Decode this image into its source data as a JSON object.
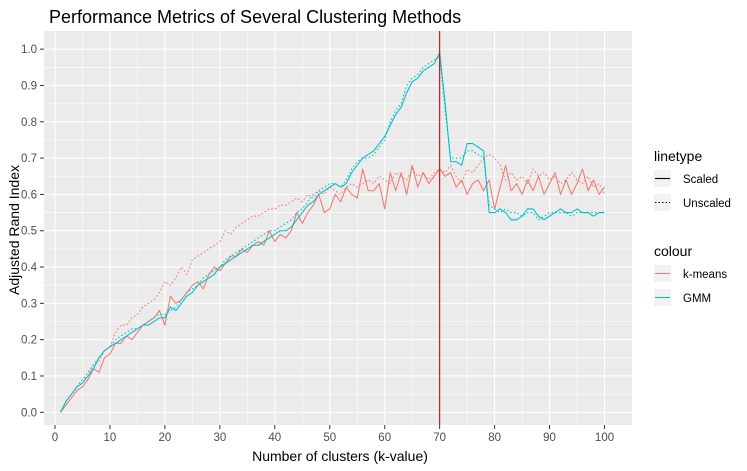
{
  "chart_data": {
    "type": "line",
    "title": "Performance Metrics of Several Clustering Methods",
    "xlabel": "Number of clusters (k-value)",
    "ylabel": "Adjusted Rand Index",
    "xlim": [
      -2,
      105
    ],
    "ylim": [
      -0.035,
      1.05
    ],
    "xticks": [
      0,
      10,
      20,
      30,
      40,
      50,
      60,
      70,
      80,
      90,
      100
    ],
    "yticks": [
      0.0,
      0.1,
      0.2,
      0.3,
      0.4,
      0.5,
      0.6,
      0.7,
      0.8,
      0.9,
      1.0
    ],
    "vline": {
      "x": 70,
      "color": "#cc0000"
    },
    "grid": true,
    "legend_position": "right",
    "legend_linetype": {
      "title": "linetype",
      "items": [
        {
          "label": "Scaled",
          "dash": "solid"
        },
        {
          "label": "Unscaled",
          "dash": "dotted"
        }
      ]
    },
    "legend_colour": {
      "title": "colour",
      "items": [
        {
          "label": "k-means",
          "color": "#F8766D"
        },
        {
          "label": "GMM",
          "color": "#00BFC4"
        }
      ]
    },
    "series": [
      {
        "method": "k-means",
        "linetype": "Scaled",
        "color": "#F8766D",
        "x": [
          1,
          2,
          3,
          4,
          5,
          6,
          7,
          8,
          9,
          10,
          11,
          12,
          13,
          14,
          15,
          16,
          17,
          18,
          19,
          20,
          21,
          22,
          23,
          24,
          25,
          26,
          27,
          28,
          29,
          30,
          31,
          32,
          33,
          34,
          35,
          36,
          37,
          38,
          39,
          40,
          41,
          42,
          43,
          44,
          45,
          46,
          47,
          48,
          49,
          50,
          51,
          52,
          53,
          54,
          55,
          56,
          57,
          58,
          59,
          60,
          61,
          62,
          63,
          64,
          65,
          66,
          67,
          68,
          69,
          70,
          71,
          72,
          73,
          74,
          75,
          76,
          77,
          78,
          79,
          80,
          81,
          82,
          83,
          84,
          85,
          86,
          87,
          88,
          89,
          90,
          91,
          92,
          93,
          94,
          95,
          96,
          97,
          98,
          99,
          100
        ],
        "y": [
          0.0,
          0.02,
          0.04,
          0.06,
          0.07,
          0.09,
          0.12,
          0.11,
          0.15,
          0.16,
          0.19,
          0.19,
          0.21,
          0.2,
          0.22,
          0.24,
          0.25,
          0.26,
          0.28,
          0.24,
          0.32,
          0.3,
          0.31,
          0.33,
          0.35,
          0.36,
          0.34,
          0.38,
          0.4,
          0.39,
          0.41,
          0.43,
          0.43,
          0.45,
          0.44,
          0.46,
          0.47,
          0.46,
          0.5,
          0.47,
          0.49,
          0.48,
          0.5,
          0.55,
          0.52,
          0.55,
          0.57,
          0.6,
          0.55,
          0.56,
          0.6,
          0.58,
          0.62,
          0.6,
          0.59,
          0.67,
          0.61,
          0.61,
          0.63,
          0.56,
          0.66,
          0.61,
          0.66,
          0.6,
          0.68,
          0.62,
          0.66,
          0.63,
          0.65,
          0.67,
          0.65,
          0.66,
          0.62,
          0.64,
          0.6,
          0.63,
          0.64,
          0.61,
          0.64,
          0.56,
          0.62,
          0.68,
          0.61,
          0.63,
          0.6,
          0.64,
          0.61,
          0.65,
          0.6,
          0.63,
          0.66,
          0.6,
          0.64,
          0.6,
          0.63,
          0.67,
          0.61,
          0.64,
          0.6,
          0.62
        ]
      },
      {
        "method": "k-means",
        "linetype": "Unscaled",
        "color": "#F8766D",
        "x": [
          1,
          2,
          3,
          4,
          5,
          6,
          7,
          8,
          9,
          10,
          11,
          12,
          13,
          14,
          15,
          16,
          17,
          18,
          19,
          20,
          21,
          22,
          23,
          24,
          25,
          26,
          27,
          28,
          29,
          30,
          31,
          32,
          33,
          34,
          35,
          36,
          37,
          38,
          39,
          40,
          41,
          42,
          43,
          44,
          45,
          46,
          47,
          48,
          49,
          50,
          51,
          52,
          53,
          54,
          55,
          56,
          57,
          58,
          59,
          60,
          61,
          62,
          63,
          64,
          65,
          66,
          67,
          68,
          69,
          70,
          71,
          72,
          73,
          74,
          75,
          76,
          77,
          78,
          79,
          80,
          81,
          82,
          83,
          84,
          85,
          86,
          87,
          88,
          89,
          90,
          91,
          92,
          93,
          94,
          95,
          96,
          97,
          98,
          99,
          100
        ],
        "y": [
          0.0,
          0.03,
          0.05,
          0.07,
          0.09,
          0.1,
          0.13,
          0.14,
          0.17,
          0.18,
          0.22,
          0.24,
          0.24,
          0.26,
          0.27,
          0.29,
          0.3,
          0.31,
          0.33,
          0.36,
          0.35,
          0.37,
          0.4,
          0.38,
          0.42,
          0.43,
          0.44,
          0.45,
          0.46,
          0.47,
          0.5,
          0.49,
          0.51,
          0.52,
          0.53,
          0.54,
          0.54,
          0.55,
          0.56,
          0.56,
          0.57,
          0.57,
          0.58,
          0.59,
          0.58,
          0.6,
          0.59,
          0.61,
          0.6,
          0.62,
          0.61,
          0.6,
          0.62,
          0.63,
          0.62,
          0.63,
          0.64,
          0.63,
          0.65,
          0.64,
          0.63,
          0.66,
          0.65,
          0.64,
          0.67,
          0.65,
          0.66,
          0.64,
          0.66,
          0.67,
          0.66,
          0.68,
          0.65,
          0.63,
          0.67,
          0.66,
          0.68,
          0.7,
          0.71,
          0.7,
          0.68,
          0.64,
          0.66,
          0.64,
          0.65,
          0.63,
          0.67,
          0.65,
          0.66,
          0.64,
          0.65,
          0.63,
          0.64,
          0.66,
          0.64,
          0.63,
          0.65,
          0.62,
          0.63,
          0.6
        ]
      },
      {
        "method": "GMM",
        "linetype": "Scaled",
        "color": "#00BFC4",
        "x": [
          1,
          2,
          3,
          4,
          5,
          6,
          7,
          8,
          9,
          10,
          11,
          12,
          13,
          14,
          15,
          16,
          17,
          18,
          19,
          20,
          21,
          22,
          23,
          24,
          25,
          26,
          27,
          28,
          29,
          30,
          31,
          32,
          33,
          34,
          35,
          36,
          37,
          38,
          39,
          40,
          41,
          42,
          43,
          44,
          45,
          46,
          47,
          48,
          49,
          50,
          51,
          52,
          53,
          54,
          55,
          56,
          57,
          58,
          59,
          60,
          61,
          62,
          63,
          64,
          65,
          66,
          67,
          68,
          69,
          70,
          71,
          72,
          73,
          74,
          75,
          76,
          77,
          78,
          79,
          80,
          81,
          82,
          83,
          84,
          85,
          86,
          87,
          88,
          89,
          90,
          91,
          92,
          93,
          94,
          95,
          96,
          97,
          98,
          99,
          100
        ],
        "y": [
          0.0,
          0.03,
          0.05,
          0.07,
          0.08,
          0.1,
          0.12,
          0.15,
          0.17,
          0.18,
          0.19,
          0.2,
          0.21,
          0.22,
          0.23,
          0.24,
          0.24,
          0.25,
          0.26,
          0.26,
          0.29,
          0.28,
          0.3,
          0.32,
          0.33,
          0.35,
          0.36,
          0.37,
          0.38,
          0.4,
          0.41,
          0.42,
          0.43,
          0.44,
          0.45,
          0.46,
          0.46,
          0.47,
          0.48,
          0.49,
          0.5,
          0.5,
          0.51,
          0.53,
          0.55,
          0.57,
          0.58,
          0.6,
          0.61,
          0.62,
          0.63,
          0.62,
          0.63,
          0.66,
          0.68,
          0.7,
          0.71,
          0.72,
          0.74,
          0.76,
          0.79,
          0.82,
          0.84,
          0.88,
          0.91,
          0.92,
          0.94,
          0.95,
          0.96,
          0.99,
          0.85,
          0.69,
          0.69,
          0.68,
          0.74,
          0.74,
          0.73,
          0.72,
          0.55,
          0.55,
          0.56,
          0.55,
          0.53,
          0.53,
          0.54,
          0.56,
          0.56,
          0.54,
          0.53,
          0.54,
          0.55,
          0.56,
          0.55,
          0.55,
          0.56,
          0.55,
          0.55,
          0.54,
          0.55,
          0.55
        ]
      },
      {
        "method": "GMM",
        "linetype": "Unscaled",
        "color": "#00BFC4",
        "x": [
          1,
          2,
          3,
          4,
          5,
          6,
          7,
          8,
          9,
          10,
          11,
          12,
          13,
          14,
          15,
          16,
          17,
          18,
          19,
          20,
          21,
          22,
          23,
          24,
          25,
          26,
          27,
          28,
          29,
          30,
          31,
          32,
          33,
          34,
          35,
          36,
          37,
          38,
          39,
          40,
          41,
          42,
          43,
          44,
          45,
          46,
          47,
          48,
          49,
          50,
          51,
          52,
          53,
          54,
          55,
          56,
          57,
          58,
          59,
          60,
          61,
          62,
          63,
          64,
          65,
          66,
          67,
          68,
          69,
          70,
          71,
          72,
          73,
          74,
          75,
          76,
          77,
          78,
          79,
          80,
          81,
          82,
          83,
          84,
          85,
          86,
          87,
          88,
          89,
          90,
          91,
          92,
          93,
          94,
          95,
          96,
          97,
          98,
          99,
          100
        ],
        "y": [
          0.0,
          0.03,
          0.05,
          0.07,
          0.09,
          0.11,
          0.13,
          0.15,
          0.17,
          0.18,
          0.2,
          0.21,
          0.22,
          0.23,
          0.23,
          0.24,
          0.25,
          0.26,
          0.27,
          0.27,
          0.28,
          0.29,
          0.31,
          0.33,
          0.34,
          0.35,
          0.37,
          0.38,
          0.39,
          0.4,
          0.42,
          0.43,
          0.44,
          0.45,
          0.46,
          0.47,
          0.48,
          0.49,
          0.5,
          0.5,
          0.51,
          0.52,
          0.53,
          0.55,
          0.56,
          0.58,
          0.6,
          0.61,
          0.62,
          0.63,
          0.63,
          0.62,
          0.64,
          0.67,
          0.69,
          0.7,
          0.7,
          0.71,
          0.73,
          0.75,
          0.8,
          0.83,
          0.85,
          0.9,
          0.92,
          0.93,
          0.95,
          0.96,
          0.97,
          0.98,
          0.83,
          0.7,
          0.7,
          0.7,
          0.72,
          0.72,
          0.71,
          0.7,
          0.57,
          0.56,
          0.55,
          0.56,
          0.55,
          0.55,
          0.54,
          0.55,
          0.55,
          0.53,
          0.54,
          0.55,
          0.55,
          0.55,
          0.55,
          0.54,
          0.55,
          0.55,
          0.55,
          0.55,
          0.55,
          0.55
        ]
      }
    ]
  }
}
